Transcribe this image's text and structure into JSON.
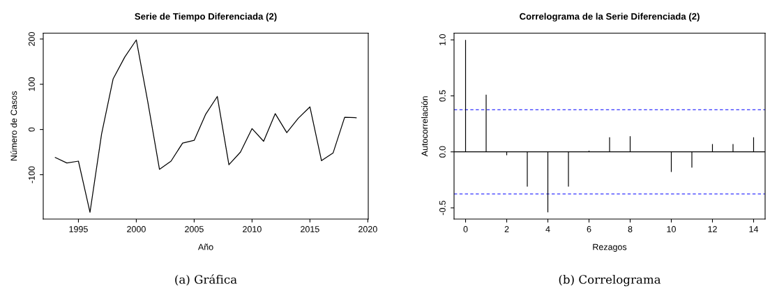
{
  "chart_data": [
    {
      "type": "line",
      "title": "Serie de Tiempo Diferenciada (2)",
      "xlabel": "Año",
      "ylabel": "Número de Casos",
      "x": [
        1993,
        1994,
        1995,
        1996,
        1997,
        1998,
        1999,
        2000,
        2001,
        2002,
        2003,
        2004,
        2005,
        2006,
        2007,
        2008,
        2009,
        2010,
        2011,
        2012,
        2013,
        2014,
        2015,
        2016,
        2017,
        2018,
        2019
      ],
      "series": [
        {
          "color": "#000000",
          "values": [
            -62,
            -74,
            -70,
            -183,
            -10,
            112,
            160,
            198,
            60,
            -88,
            -70,
            -30,
            -24,
            34,
            73,
            -78,
            -50,
            2,
            -26,
            35,
            -7,
            25,
            50,
            -69,
            -52,
            27,
            26
          ]
        }
      ],
      "xlim": [
        1991.96,
        2020.04
      ],
      "xticks": [
        1995,
        2000,
        2005,
        2010,
        2015,
        2020
      ],
      "ylim": [
        -198,
        213
      ],
      "yticks": [
        -100,
        0,
        100,
        200
      ],
      "grid": false,
      "legend": false,
      "annotations": [
        "(a) Gráfica"
      ]
    },
    {
      "type": "bar",
      "title": "Correlograma de la Serie Diferenciada (2)",
      "xlabel": "Rezagos",
      "ylabel": "Autocorrelación",
      "x": [
        0,
        1,
        2,
        3,
        4,
        5,
        6,
        7,
        8,
        9,
        10,
        11,
        12,
        13,
        14
      ],
      "series": [
        {
          "color": "#000000",
          "values": [
            1.0,
            0.51,
            -0.03,
            -0.31,
            -0.54,
            -0.31,
            0.01,
            0.13,
            0.14,
            0.0,
            -0.18,
            -0.14,
            0.07,
            0.07,
            0.13
          ]
        }
      ],
      "xlim": [
        -0.56,
        14.56
      ],
      "xticks": [
        0,
        2,
        4,
        6,
        8,
        10,
        12,
        14
      ],
      "ylim": [
        -0.6,
        1.06
      ],
      "yticks": [
        {
          "value": -0.5,
          "label": "-0.5"
        },
        {
          "value": 0,
          "label": "0.0"
        },
        {
          "value": 0.5,
          "label": "0.5"
        },
        {
          "value": 1.0,
          "label": "1.0"
        }
      ],
      "ref_lines": [
        {
          "axis": "y",
          "value": 0,
          "color": "#000000",
          "line_style": "solid"
        },
        {
          "axis": "y",
          "value": 0.376,
          "color": "#0000ff",
          "line_style": "dashed"
        },
        {
          "axis": "y",
          "value": -0.376,
          "color": "#0000ff",
          "line_style": "dashed"
        }
      ],
      "grid": false,
      "legend": false,
      "annotations": [
        "(b) Correlograma"
      ]
    }
  ]
}
